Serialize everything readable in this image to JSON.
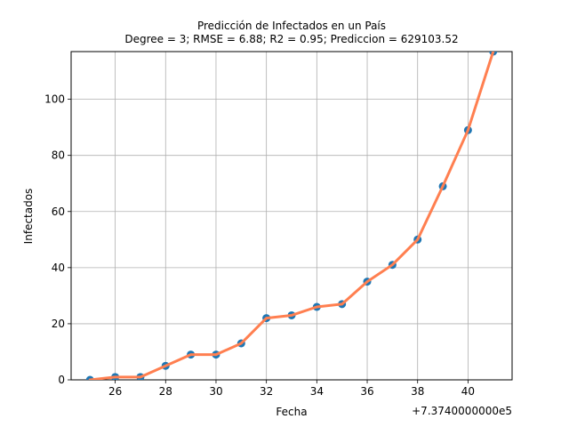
{
  "chart_data": {
    "type": "scatter",
    "title": "Predicción de Infectados en un País",
    "subtitle": "Degree = 3; RMSE = 6.88; R2 = 0.95; Prediccion = 629103.52",
    "xlabel": "Fecha",
    "ylabel": "Infectados",
    "x_offset_label": "+7.3740000000e5",
    "xlim": [
      24.25,
      41.75
    ],
    "ylim": [
      0,
      117
    ],
    "grid": true,
    "x_ticks": [
      26,
      28,
      30,
      32,
      34,
      36,
      38,
      40
    ],
    "y_ticks": [
      0,
      20,
      40,
      60,
      80,
      100
    ],
    "x_tick_labels": [
      "26",
      "28",
      "30",
      "32",
      "34",
      "36",
      "38",
      "40"
    ],
    "y_tick_labels": [
      "0",
      "20",
      "40",
      "60",
      "80",
      "100"
    ],
    "series": [
      {
        "kind": "scatter",
        "color": "#1f77b4",
        "points": [
          {
            "x": 25,
            "y": 0
          },
          {
            "x": 26,
            "y": 1
          },
          {
            "x": 27,
            "y": 1
          },
          {
            "x": 28,
            "y": 5
          },
          {
            "x": 29,
            "y": 9
          },
          {
            "x": 30,
            "y": 9
          },
          {
            "x": 31,
            "y": 13
          },
          {
            "x": 32,
            "y": 22
          },
          {
            "x": 33,
            "y": 23
          },
          {
            "x": 34,
            "y": 26
          },
          {
            "x": 35,
            "y": 27
          },
          {
            "x": 36,
            "y": 35
          },
          {
            "x": 37,
            "y": 41
          },
          {
            "x": 38,
            "y": 50
          },
          {
            "x": 39,
            "y": 69
          },
          {
            "x": 40,
            "y": 89
          },
          {
            "x": 41,
            "y": 117
          }
        ]
      },
      {
        "kind": "line",
        "color": "#ff7f50",
        "points": [
          {
            "x": 25,
            "y": 0
          },
          {
            "x": 26,
            "y": 1
          },
          {
            "x": 27,
            "y": 1
          },
          {
            "x": 28,
            "y": 5
          },
          {
            "x": 29,
            "y": 9
          },
          {
            "x": 30,
            "y": 9
          },
          {
            "x": 31,
            "y": 13
          },
          {
            "x": 32,
            "y": 22
          },
          {
            "x": 33,
            "y": 23
          },
          {
            "x": 34,
            "y": 26
          },
          {
            "x": 35,
            "y": 27
          },
          {
            "x": 36,
            "y": 35
          },
          {
            "x": 37,
            "y": 41
          },
          {
            "x": 38,
            "y": 50
          },
          {
            "x": 39,
            "y": 69
          },
          {
            "x": 40,
            "y": 89
          },
          {
            "x": 41,
            "y": 117
          }
        ]
      }
    ]
  }
}
